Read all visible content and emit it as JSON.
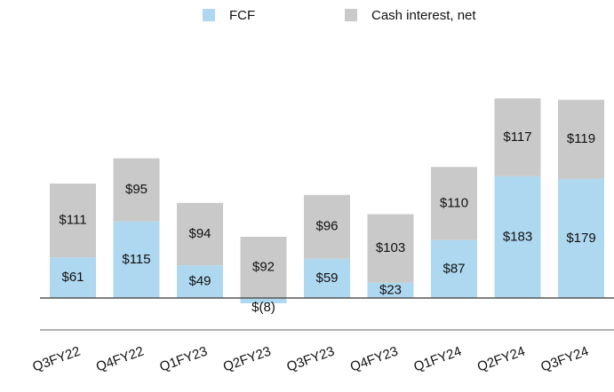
{
  "chart_data": {
    "type": "stacked_bar",
    "categories": [
      "Q3FY22",
      "Q4FY22",
      "Q1FY23",
      "Q2FY23",
      "Q3FY23",
      "Q4FY23",
      "Q1FY24",
      "Q2FY24",
      "Q3FY24"
    ],
    "series": [
      {
        "name": "FCF",
        "color": "#aed8f0",
        "values": [
          61,
          115,
          49,
          -8,
          59,
          23,
          87,
          183,
          179
        ],
        "value_labels": [
          "$61",
          "$115",
          "$49",
          "$(8)",
          "$59",
          "$23",
          "$87",
          "$183",
          "$179"
        ]
      },
      {
        "name": "Cash interest, net",
        "color": "#c8c9c8",
        "values": [
          111,
          95,
          94,
          92,
          96,
          103,
          110,
          117,
          119
        ],
        "value_labels": [
          "$111",
          "$95",
          "$94",
          "$92",
          "$96",
          "$103",
          "$110",
          "$117",
          "$119"
        ]
      }
    ]
  }
}
